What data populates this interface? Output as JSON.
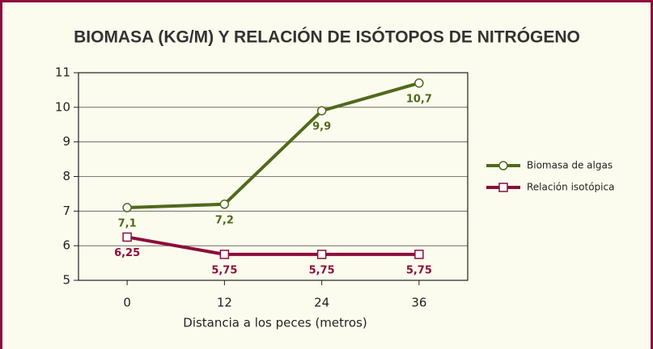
{
  "chart_data": {
    "type": "line",
    "title": "BIOMASA (KG/M) Y RELACIÓN DE ISÓTOPOS DE NITRÓGENO",
    "x_label": "Distancia a los peces (metros)",
    "categories": [
      "0",
      "12",
      "24",
      "36"
    ],
    "series": [
      {
        "name": "Biomasa de algas",
        "color": "#4f6a1c",
        "marker": "circle",
        "values": [
          7.1,
          7.2,
          9.9,
          10.7
        ],
        "value_labels": [
          "7,1",
          "7,2",
          "9,9",
          "10,7"
        ]
      },
      {
        "name": "Relación isotópica",
        "color": "#8c0d3c",
        "marker": "square",
        "values": [
          6.25,
          5.75,
          5.75,
          5.75
        ],
        "value_labels": [
          "6,25",
          "5,75",
          "5,75",
          "5,75"
        ]
      }
    ],
    "ylim": [
      5,
      11
    ],
    "yticks": [
      5,
      6,
      7,
      8,
      9,
      10,
      11
    ],
    "grid": true,
    "legend": "right"
  }
}
